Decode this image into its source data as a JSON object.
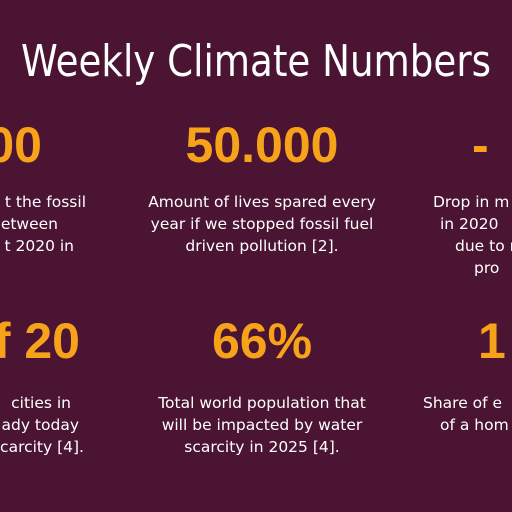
{
  "title": "Weekly Climate Numbers",
  "stats": [
    {
      "figure": "00",
      "lines": [
        "t the fossil",
        "etween",
        "t 2020 in"
      ]
    },
    {
      "figure": "50.000",
      "lines": [
        "Amount of lives spared every",
        "year if we stopped fossil fuel",
        "driven pollution [2]."
      ]
    },
    {
      "figure": "-",
      "lines": [
        "Drop in m",
        "in 2020",
        "due to m",
        "pro"
      ]
    },
    {
      "figure": "f 20",
      "lines": [
        "cities in",
        "ady today",
        "carcity [4]."
      ]
    },
    {
      "figure": "66%",
      "lines": [
        "Total world population that",
        "will be impacted by water",
        "scarcity in 2025 [4]."
      ]
    },
    {
      "figure": "1",
      "lines": [
        "Share of e",
        "of a hom"
      ]
    }
  ]
}
